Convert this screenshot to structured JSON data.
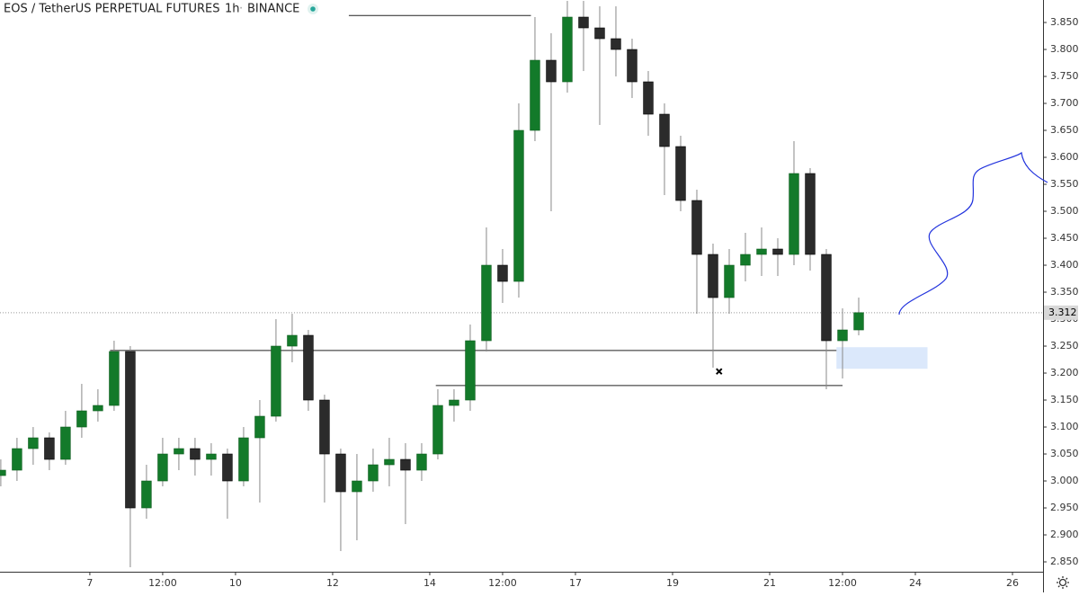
{
  "chart_data": {
    "type": "candlestick",
    "title": "EOS / TetherUS PERPETUAL FUTURES",
    "interval": "1h",
    "exchange": "BINANCE",
    "x": [
      -44,
      -36,
      -28,
      -20,
      -12,
      -4,
      4,
      12,
      20,
      28,
      36,
      44,
      52,
      60,
      68,
      76,
      84,
      92,
      100,
      108,
      116,
      124,
      132,
      140,
      148,
      156,
      164,
      172,
      180,
      188,
      196,
      204,
      212,
      220,
      228,
      236,
      244,
      252,
      260,
      268,
      276,
      284,
      292,
      300,
      308,
      316,
      324,
      332,
      340,
      348,
      356,
      364,
      372,
      380
    ],
    "open": [
      3.01,
      3.02,
      3.06,
      3.08,
      3.04,
      3.1,
      3.13,
      3.14,
      3.24,
      2.95,
      3.0,
      3.05,
      3.06,
      3.04,
      3.05,
      3.0,
      3.08,
      3.12,
      3.25,
      3.27,
      3.15,
      3.05,
      2.98,
      3.0,
      3.03,
      3.04,
      3.02,
      3.05,
      3.14,
      3.15,
      3.26,
      3.4,
      3.37,
      3.65,
      3.78,
      3.74,
      3.86,
      3.84,
      3.82,
      3.8,
      3.74,
      3.68,
      3.62,
      3.52,
      3.42,
      3.34,
      3.4,
      3.42,
      3.43,
      3.42,
      3.57,
      3.42,
      3.26,
      3.28
    ],
    "high": [
      3.04,
      3.08,
      3.1,
      3.09,
      3.13,
      3.18,
      3.17,
      3.26,
      3.25,
      3.03,
      3.08,
      3.08,
      3.08,
      3.07,
      3.06,
      3.1,
      3.15,
      3.3,
      3.31,
      3.28,
      3.16,
      3.06,
      3.05,
      3.06,
      3.08,
      3.07,
      3.07,
      3.17,
      3.17,
      3.29,
      3.47,
      3.43,
      3.7,
      3.86,
      3.83,
      3.89,
      3.89,
      3.88,
      3.88,
      3.82,
      3.76,
      3.7,
      3.64,
      3.54,
      3.44,
      3.43,
      3.46,
      3.47,
      3.45,
      3.63,
      3.58,
      3.43,
      3.32,
      3.34
    ],
    "low": [
      2.99,
      3.0,
      3.03,
      3.02,
      3.03,
      3.08,
      3.11,
      3.13,
      2.84,
      2.93,
      2.99,
      3.02,
      3.01,
      3.01,
      2.93,
      2.99,
      2.96,
      3.11,
      3.22,
      3.13,
      2.96,
      2.87,
      2.89,
      2.98,
      2.99,
      2.92,
      3.0,
      3.04,
      3.11,
      3.13,
      3.24,
      3.33,
      3.34,
      3.63,
      3.5,
      3.72,
      3.76,
      3.66,
      3.75,
      3.71,
      3.64,
      3.53,
      3.5,
      3.31,
      3.21,
      3.31,
      3.37,
      3.38,
      3.38,
      3.4,
      3.39,
      3.17,
      3.19,
      3.27
    ],
    "close": [
      3.02,
      3.06,
      3.08,
      3.04,
      3.1,
      3.13,
      3.14,
      3.24,
      2.95,
      3.0,
      3.05,
      3.06,
      3.04,
      3.05,
      3.0,
      3.08,
      3.12,
      3.25,
      3.27,
      3.15,
      3.05,
      2.98,
      3.0,
      3.03,
      3.04,
      3.02,
      3.05,
      3.14,
      3.15,
      3.26,
      3.4,
      3.37,
      3.65,
      3.78,
      3.74,
      3.86,
      3.84,
      3.82,
      3.8,
      3.74,
      3.68,
      3.62,
      3.52,
      3.42,
      3.34,
      3.4,
      3.42,
      3.43,
      3.42,
      3.57,
      3.42,
      3.26,
      3.28,
      3.312
    ],
    "up_color": "#137a2a",
    "down_color": "#2b2b2b",
    "last_price": {
      "value": 3.312,
      "label": "3.312"
    },
    "xlim": [
      -44.4,
      471.1
    ],
    "xticks": [
      {
        "value": 0,
        "label": "7"
      },
      {
        "value": 36,
        "label": "12:00"
      },
      {
        "value": 72,
        "label": "10"
      },
      {
        "value": 120,
        "label": "12"
      },
      {
        "value": 168,
        "label": "14"
      },
      {
        "value": 204,
        "label": "12:00"
      },
      {
        "value": 240,
        "label": "17"
      },
      {
        "value": 288,
        "label": "19"
      },
      {
        "value": 336,
        "label": "21"
      },
      {
        "value": 372,
        "label": "12:00"
      },
      {
        "value": 408,
        "label": "24"
      },
      {
        "value": 456,
        "label": "26"
      }
    ],
    "ylim": [
      2.8317,
      3.8917
    ],
    "yticks": [
      {
        "value": 2.85,
        "label": "2.850"
      },
      {
        "value": 2.9,
        "label": "2.900"
      },
      {
        "value": 2.95,
        "label": "2.950"
      },
      {
        "value": 3.0,
        "label": "3.000"
      },
      {
        "value": 3.05,
        "label": "3.050"
      },
      {
        "value": 3.1,
        "label": "3.100"
      },
      {
        "value": 3.15,
        "label": "3.150"
      },
      {
        "value": 3.2,
        "label": "3.200"
      },
      {
        "value": 3.25,
        "label": "3.250"
      },
      {
        "value": 3.3,
        "label": "3.300"
      },
      {
        "value": 3.35,
        "label": "3.350"
      },
      {
        "value": 3.4,
        "label": "3.400"
      },
      {
        "value": 3.45,
        "label": "3.450"
      },
      {
        "value": 3.5,
        "label": "3.500"
      },
      {
        "value": 3.55,
        "label": "3.550"
      },
      {
        "value": 3.6,
        "label": "3.600"
      },
      {
        "value": 3.65,
        "label": "3.650"
      },
      {
        "value": 3.7,
        "label": "3.700"
      },
      {
        "value": 3.75,
        "label": "3.750"
      },
      {
        "value": 3.8,
        "label": "3.800"
      },
      {
        "value": 3.85,
        "label": "3.850"
      }
    ],
    "levels": [
      {
        "price": 3.863,
        "x": [
          128,
          218
        ]
      },
      {
        "price": 3.242,
        "x": [
          10,
          388
        ]
      },
      {
        "price": 3.177,
        "x": [
          171,
          372
        ]
      }
    ],
    "zone": {
      "price": [
        3.208,
        3.248
      ],
      "x": [
        369,
        414
      ]
    },
    "marker": {
      "price": 3.203,
      "x": 311
    }
  }
}
